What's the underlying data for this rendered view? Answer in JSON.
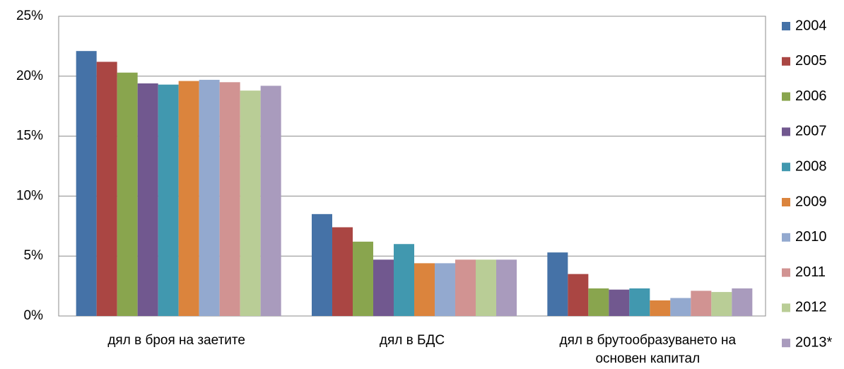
{
  "chart_data": {
    "type": "bar",
    "categories": [
      "дял в броя на заетите",
      "дял в БДС",
      "дял в брутообразуването на основен капитал"
    ],
    "series": [
      {
        "name": "2004",
        "color": "#4572a7",
        "values": [
          22.1,
          8.5,
          5.3
        ]
      },
      {
        "name": "2005",
        "color": "#aa4643",
        "values": [
          21.2,
          7.4,
          3.5
        ]
      },
      {
        "name": "2006",
        "color": "#89a54e",
        "values": [
          20.3,
          6.2,
          2.3
        ]
      },
      {
        "name": "2007",
        "color": "#71588f",
        "values": [
          19.4,
          4.7,
          2.2
        ]
      },
      {
        "name": "2008",
        "color": "#4198af",
        "values": [
          19.3,
          6.0,
          2.3
        ]
      },
      {
        "name": "2009",
        "color": "#db843d",
        "values": [
          19.6,
          4.4,
          1.3
        ]
      },
      {
        "name": "2010",
        "color": "#93a9cf",
        "values": [
          19.7,
          4.4,
          1.5
        ]
      },
      {
        "name": "2011",
        "color": "#d19392",
        "values": [
          19.5,
          4.7,
          2.1
        ]
      },
      {
        "name": "2012",
        "color": "#b9cd96",
        "values": [
          18.8,
          4.7,
          2.0
        ]
      },
      {
        "name": "2013*",
        "color": "#a99bbd",
        "values": [
          19.2,
          4.7,
          2.3
        ]
      }
    ],
    "ylim": [
      0,
      25
    ],
    "yticks": [
      {
        "value": 0,
        "label": "0%"
      },
      {
        "value": 5,
        "label": "5%"
      },
      {
        "value": 10,
        "label": "10%"
      },
      {
        "value": 15,
        "label": "15%"
      },
      {
        "value": 20,
        "label": "20%"
      },
      {
        "value": 25,
        "label": "25%"
      }
    ],
    "grid": true,
    "legend": "right"
  }
}
